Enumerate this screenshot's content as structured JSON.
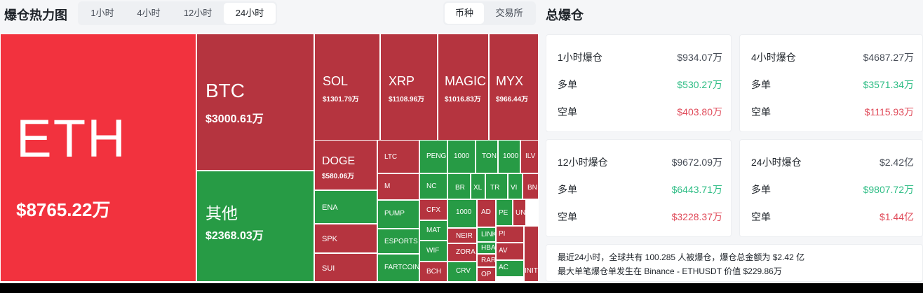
{
  "header": {
    "title": "爆仓热力图",
    "time_tabs": [
      "1小时",
      "4小时",
      "12小时",
      "24小时"
    ],
    "active_time_tab": "24小时",
    "group_tabs": [
      "币种",
      "交易所"
    ],
    "active_group_tab": "币种",
    "side_title": "总爆仓"
  },
  "colors": {
    "red": "#b5343f",
    "bright_red": "#f2323e",
    "green": "#279b45",
    "long_text": "#2ebd85",
    "short_text": "#e04b5a"
  },
  "treemap": {
    "cells": [
      {
        "symbol": "ETH",
        "value": "$8765.22万",
        "color": "bright_red"
      },
      {
        "symbol": "BTC",
        "value": "$3000.61万",
        "color": "red"
      },
      {
        "symbol": "其他",
        "value": "$2368.03万",
        "color": "green"
      },
      {
        "symbol": "SOL",
        "value": "$1301.79万",
        "color": "red"
      },
      {
        "symbol": "XRP",
        "value": "$1108.96万",
        "color": "red"
      },
      {
        "symbol": "MAGIC",
        "value": "$1016.83万",
        "color": "red"
      },
      {
        "symbol": "MYX",
        "value": "$966.44万",
        "color": "red"
      },
      {
        "symbol": "DOGE",
        "value": "$580.06万",
        "color": "red"
      },
      {
        "symbol": "ENA",
        "value": "",
        "color": "green"
      },
      {
        "symbol": "SPK",
        "value": "",
        "color": "red"
      },
      {
        "symbol": "SUI",
        "value": "",
        "color": "red"
      },
      {
        "symbol": "LTC",
        "value": "",
        "color": "red"
      },
      {
        "symbol": "M",
        "value": "",
        "color": "red"
      },
      {
        "symbol": "PUMP",
        "value": "",
        "color": "green"
      },
      {
        "symbol": "ESPORTS",
        "value": "",
        "color": "green"
      },
      {
        "symbol": "FARTCOIN",
        "value": "",
        "color": "green"
      },
      {
        "symbol": "PENG",
        "value": "",
        "color": "green"
      },
      {
        "symbol": "1000",
        "value": "",
        "color": "green"
      },
      {
        "symbol": "TON",
        "value": "",
        "color": "green"
      },
      {
        "symbol": "1000",
        "value": "",
        "color": "green"
      },
      {
        "symbol": "ILV",
        "value": "",
        "color": "red"
      },
      {
        "symbol": "NC",
        "value": "",
        "color": "green"
      },
      {
        "symbol": "BR",
        "value": "",
        "color": "green"
      },
      {
        "symbol": "XL",
        "value": "",
        "color": "green"
      },
      {
        "symbol": "TR",
        "value": "",
        "color": "green"
      },
      {
        "symbol": "VI",
        "value": "",
        "color": "green"
      },
      {
        "symbol": "BN",
        "value": "",
        "color": "red"
      },
      {
        "symbol": "CFX",
        "value": "",
        "color": "red"
      },
      {
        "symbol": "MAT",
        "value": "",
        "color": "green"
      },
      {
        "symbol": "WIF",
        "value": "",
        "color": "green"
      },
      {
        "symbol": "BCH",
        "value": "",
        "color": "red"
      },
      {
        "symbol": "1000",
        "value": "",
        "color": "green"
      },
      {
        "symbol": "NEIR",
        "value": "",
        "color": "red"
      },
      {
        "symbol": "ZORA",
        "value": "",
        "color": "red"
      },
      {
        "symbol": "CRV",
        "value": "",
        "color": "green"
      },
      {
        "symbol": "AD",
        "value": "",
        "color": "red"
      },
      {
        "symbol": "LINK",
        "value": "",
        "color": "green"
      },
      {
        "symbol": "HBA",
        "value": "",
        "color": "green"
      },
      {
        "symbol": "RAR",
        "value": "",
        "color": "red"
      },
      {
        "symbol": "OP",
        "value": "",
        "color": "red"
      },
      {
        "symbol": "PE",
        "value": "",
        "color": "green"
      },
      {
        "symbol": "UN",
        "value": "",
        "color": "red"
      },
      {
        "symbol": "PI",
        "value": "",
        "color": "red"
      },
      {
        "symbol": "AV",
        "value": "",
        "color": "red"
      },
      {
        "symbol": "AC",
        "value": "",
        "color": "green"
      },
      {
        "symbol": "INIT",
        "value": "",
        "color": "red"
      }
    ]
  },
  "stats": [
    {
      "label": "1小时爆仓",
      "total": "$934.07万",
      "long_label": "多单",
      "long": "$530.27万",
      "short_label": "空单",
      "short": "$403.80万"
    },
    {
      "label": "4小时爆仓",
      "total": "$4687.27万",
      "long_label": "多单",
      "long": "$3571.34万",
      "short_label": "空单",
      "short": "$1115.93万"
    },
    {
      "label": "12小时爆仓",
      "total": "$9672.09万",
      "long_label": "多单",
      "long": "$6443.71万",
      "short_label": "空单",
      "short": "$3228.37万"
    },
    {
      "label": "24小时爆仓",
      "total": "$2.42亿",
      "long_label": "多单",
      "long": "$9807.72万",
      "short_label": "空单",
      "short": "$1.44亿"
    }
  ],
  "summary": {
    "line1": "最近24小时，全球共有 100.285 人被爆仓，爆仓总金额为 $2.42 亿",
    "line2": "最大单笔爆仓单发生在 Binance - ETHUSDT 价值 $229.86万"
  }
}
